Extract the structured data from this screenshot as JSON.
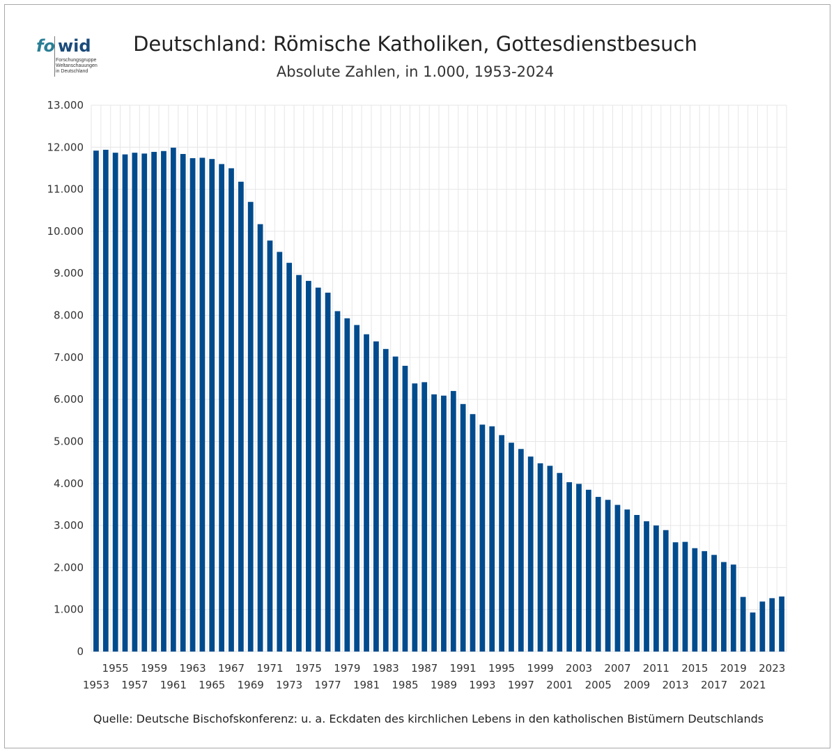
{
  "logo": {
    "fo": "fo",
    "wid": "wid",
    "subtitle_lines": [
      "Forschungsgruppe",
      "Weltanschauungen",
      "in Deutschland"
    ]
  },
  "header": {
    "title": "Deutschland: Römische Katholiken, Gottesdienstbesuch",
    "subtitle": "Absolute Zahlen, in 1.000, 1953-2024"
  },
  "footer": {
    "source": "Quelle: Deutsche Bischofskonferenz: u. a.  Eckdaten des kirchlichen Lebens in den katholischen Bistümern Deutschlands"
  },
  "colors": {
    "bar": "#004b8d",
    "grid": "#e6e6e6",
    "axis_text": "#333333"
  },
  "chart_data": {
    "type": "bar",
    "title": "Deutschland: Römische Katholiken, Gottesdienstbesuch",
    "subtitle": "Absolute Zahlen, in 1.000, 1953-2024",
    "xlabel": "",
    "ylabel": "",
    "ylim": [
      0,
      13000
    ],
    "y_ticks": [
      0,
      1000,
      2000,
      3000,
      4000,
      5000,
      6000,
      7000,
      8000,
      9000,
      10000,
      11000,
      12000,
      13000
    ],
    "y_tick_labels": [
      "0",
      "1.000",
      "2.000",
      "3.000",
      "4.000",
      "5.000",
      "6.000",
      "7.000",
      "8.000",
      "9.000",
      "10.000",
      "11.000",
      "12.000",
      "13.000"
    ],
    "grid": true,
    "categories": [
      "1953",
      "1954",
      "1955",
      "1956",
      "1957",
      "1958",
      "1959",
      "1960",
      "1961",
      "1962",
      "1963",
      "1964",
      "1965",
      "1966",
      "1967",
      "1968",
      "1969",
      "1970",
      "1971",
      "1972",
      "1973",
      "1974",
      "1975",
      "1976",
      "1977",
      "1978",
      "1979",
      "1980",
      "1981",
      "1982",
      "1983",
      "1984",
      "1985",
      "1986",
      "1987",
      "1988",
      "1989",
      "1990",
      "1991",
      "1992",
      "1993",
      "1994",
      "1995",
      "1996",
      "1997",
      "1998",
      "1999",
      "2000",
      "2001",
      "2002",
      "2003",
      "2004",
      "2005",
      "2006",
      "2007",
      "2008",
      "2009",
      "2010",
      "2011",
      "2012",
      "2013",
      "2014",
      "2015",
      "2016",
      "2017",
      "2018",
      "2019",
      "2020",
      "2021",
      "2022",
      "2023",
      "2024"
    ],
    "values": [
      11920,
      11940,
      11870,
      11830,
      11870,
      11850,
      11890,
      11910,
      11990,
      11840,
      11740,
      11750,
      11720,
      11600,
      11500,
      11180,
      10700,
      10170,
      9780,
      9510,
      9250,
      8960,
      8820,
      8660,
      8540,
      8100,
      7930,
      7770,
      7550,
      7380,
      7200,
      7020,
      6800,
      6380,
      6410,
      6120,
      6090,
      6200,
      5890,
      5650,
      5400,
      5360,
      5150,
      4970,
      4820,
      4640,
      4480,
      4420,
      4250,
      4030,
      3990,
      3850,
      3680,
      3610,
      3490,
      3380,
      3250,
      3100,
      3000,
      2890,
      2600,
      2610,
      2460,
      2390,
      2300,
      2130,
      2070,
      1300,
      930,
      1190,
      1270,
      1310
    ],
    "series": [
      {
        "name": "",
        "values": "see values"
      }
    ],
    "x_tick_labels_top_row": [
      "1955",
      "1959",
      "1963",
      "1967",
      "1971",
      "1975",
      "1979",
      "1983",
      "1987",
      "1991",
      "1995",
      "1999",
      "2003",
      "2007",
      "2011",
      "2015",
      "2019",
      "2023"
    ],
    "x_tick_labels_bottom_row": [
      "1953",
      "1957",
      "1961",
      "1965",
      "1969",
      "1973",
      "1977",
      "1981",
      "1985",
      "1989",
      "1993",
      "1997",
      "2001",
      "2005",
      "2009",
      "2013",
      "2017",
      "2021"
    ]
  }
}
